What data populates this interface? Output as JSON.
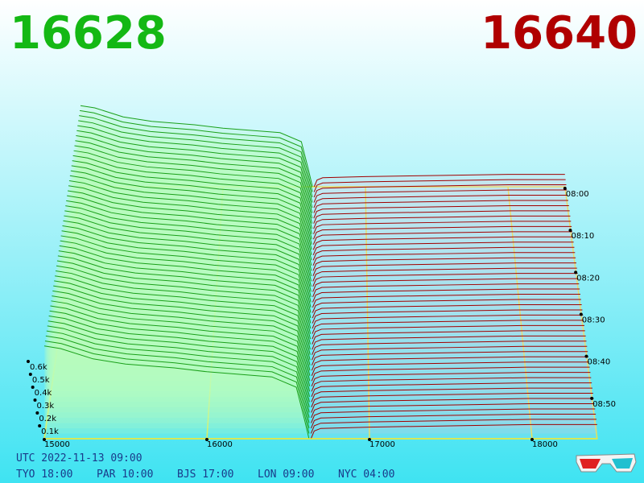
{
  "header": {
    "bid_price": "16628",
    "ask_price": "16640"
  },
  "chart_data": {
    "type": "depth3d",
    "bids": {
      "color": "#1aa01a",
      "prices": [
        15000,
        15100,
        15300,
        15500,
        15800,
        16000,
        16200,
        16400,
        16550,
        16600,
        16628
      ],
      "depth": [
        720,
        700,
        620,
        580,
        550,
        520,
        500,
        480,
        400,
        150,
        0
      ]
    },
    "asks": {
      "color": "#a00000",
      "prices": [
        16640,
        16660,
        16700,
        17000,
        17500,
        18000,
        18400
      ],
      "depth": [
        0,
        60,
        80,
        90,
        100,
        110,
        110
      ]
    },
    "xlim": [
      15000,
      18400
    ],
    "xticks": [
      15000,
      16000,
      17000,
      18000
    ],
    "yticks": [
      {
        "value": 100,
        "label": "0.1k"
      },
      {
        "value": 200,
        "label": "0.2k"
      },
      {
        "value": 300,
        "label": "0.3k"
      },
      {
        "value": 400,
        "label": "0.4k"
      },
      {
        "value": 500,
        "label": "0.5k"
      },
      {
        "value": 600,
        "label": "0.6k"
      }
    ],
    "time_ticks": [
      "08:00",
      "08:10",
      "08:20",
      "08:30",
      "08:40",
      "08:50"
    ]
  },
  "footer": {
    "utc": "UTC 2022-11-13 09:00",
    "clocks": [
      "TYO 18:00",
      "PAR 10:00",
      "BJS 17:00",
      "LON 09:00",
      "NYC 04:00"
    ]
  }
}
